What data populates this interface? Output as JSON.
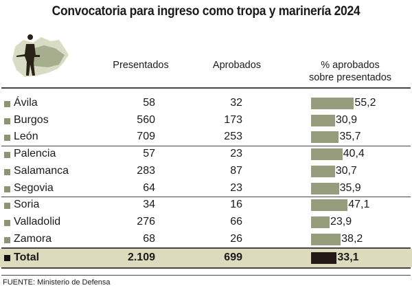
{
  "title": "Convocatoria para ingreso como tropa y marinería 2024",
  "headers": {
    "presentados": "Presentados",
    "aprobados": "Aprobados",
    "pct_line1": "% aprobados",
    "pct_line2": "sobre presentados"
  },
  "chart_data": {
    "type": "table",
    "columns": [
      "",
      "Presentados",
      "Aprobados",
      "% aprobados sobre presentados"
    ],
    "rows": [
      {
        "name": "Ávila",
        "presentados": "58",
        "aprobados": "32",
        "pct": 55.2,
        "pct_label": "55,2"
      },
      {
        "name": "Burgos",
        "presentados": "560",
        "aprobados": "173",
        "pct": 30.9,
        "pct_label": "30,9"
      },
      {
        "name": "León",
        "presentados": "709",
        "aprobados": "253",
        "pct": 35.7,
        "pct_label": "35,7"
      },
      {
        "name": "Palencia",
        "presentados": "57",
        "aprobados": "23",
        "pct": 40.4,
        "pct_label": "40,4"
      },
      {
        "name": "Salamanca",
        "presentados": "283",
        "aprobados": "87",
        "pct": 30.7,
        "pct_label": "30,7"
      },
      {
        "name": "Segovia",
        "presentados": "64",
        "aprobados": "23",
        "pct": 35.9,
        "pct_label": "35,9"
      },
      {
        "name": "Soria",
        "presentados": "34",
        "aprobados": "16",
        "pct": 47.1,
        "pct_label": "47,1"
      },
      {
        "name": "Valladolid",
        "presentados": "276",
        "aprobados": "66",
        "pct": 23.9,
        "pct_label": "23,9"
      },
      {
        "name": "Zamora",
        "presentados": "68",
        "aprobados": "26",
        "pct": 38.2,
        "pct_label": "38,2"
      }
    ],
    "total": {
      "name": "Total",
      "presentados": "2.109",
      "aprobados": "699",
      "pct": 33.1,
      "pct_label": "33,1"
    },
    "colors": {
      "bar": "#959d7c",
      "total_bar": "#231a18",
      "total_bg": "#dcdbbd"
    }
  },
  "source": "FUENTE: Ministerio de Defensa"
}
